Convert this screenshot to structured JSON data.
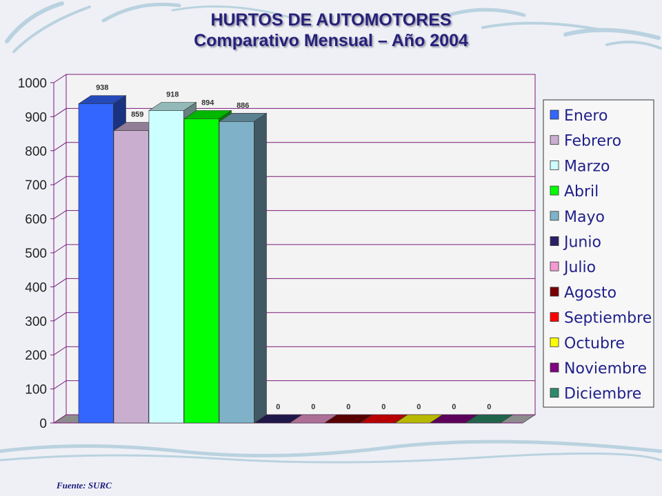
{
  "page": {
    "title": "HURTOS DE AUTOMOTORES",
    "subtitle": "Comparativo Mensual – Año 2004",
    "source": "Fuente: SURC"
  },
  "chart_data": {
    "type": "bar",
    "style": "3d-clustered",
    "title": "HURTOS DE AUTOMOTORES",
    "subtitle": "Comparativo Mensual – Año 2004",
    "xlabel": "",
    "ylabel": "",
    "ylim": [
      0,
      1000
    ],
    "yticks": [
      "0",
      "100",
      "200",
      "300",
      "400",
      "500",
      "600",
      "700",
      "800",
      "900",
      "1000"
    ],
    "grid": true,
    "legend_position": "right",
    "series": [
      {
        "name": "Enero",
        "value": 938,
        "label": "938",
        "color": "#3366ff"
      },
      {
        "name": "Febrero",
        "value": 859,
        "label": "859",
        "color": "#c9aed0"
      },
      {
        "name": "Marzo",
        "value": 918,
        "label": "918",
        "color": "#ccffff"
      },
      {
        "name": "Abril",
        "value": 894,
        "label": "894",
        "color": "#00ff00"
      },
      {
        "name": "Mayo",
        "value": 886,
        "label": "886",
        "color": "#7fb2c8"
      },
      {
        "name": "Junio",
        "value": 0,
        "label": "0",
        "color": "#2b1f66"
      },
      {
        "name": "Julio",
        "value": 0,
        "label": "0",
        "color": "#f29ad2"
      },
      {
        "name": "Agosto",
        "value": 0,
        "label": "0",
        "color": "#7a0000"
      },
      {
        "name": "Septiembre",
        "value": 0,
        "label": "0",
        "color": "#ff0000"
      },
      {
        "name": "Octubre",
        "value": 0,
        "label": "0",
        "color": "#ffff00"
      },
      {
        "name": "Noviembre",
        "value": 0,
        "label": "0",
        "color": "#800080"
      },
      {
        "name": "Diciembre",
        "value": 0,
        "label": "0",
        "color": "#2e8b6a"
      }
    ]
  }
}
